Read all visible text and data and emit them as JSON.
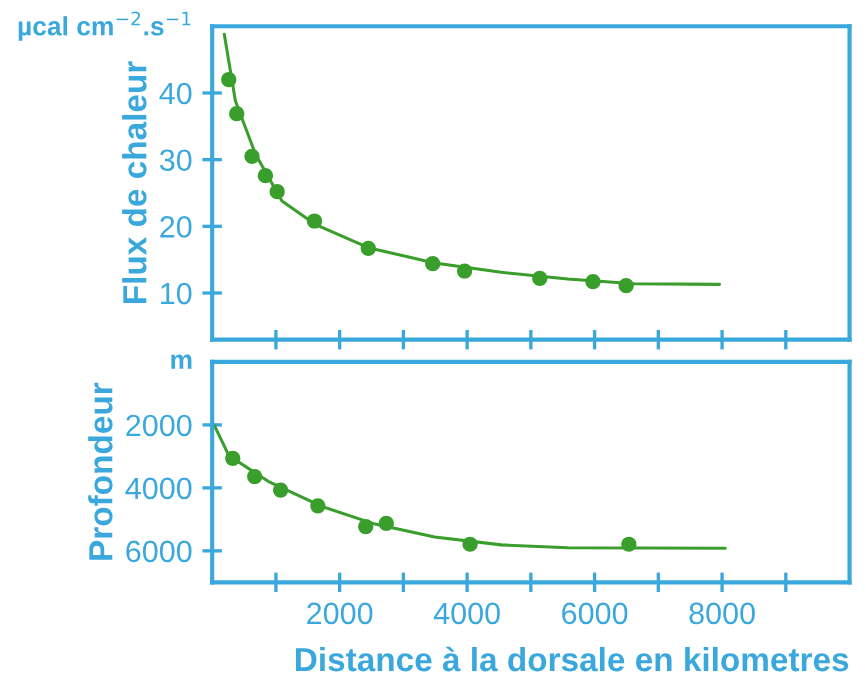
{
  "chart_data": [
    {
      "type": "scatter",
      "ylabel": "Flux de chaleur",
      "annotations": [
        "µcal cm$^{−2}$.s$^{−1}$"
      ],
      "xlim": [
        0,
        10000
      ],
      "ylim": [
        3,
        50
      ],
      "xticks": [
        {
          "value": 1000,
          "label": null
        },
        {
          "value": 2000,
          "label": null
        },
        {
          "value": 3000,
          "label": null
        },
        {
          "value": 4000,
          "label": null
        },
        {
          "value": 5000,
          "label": null
        },
        {
          "value": 6000,
          "label": null
        },
        {
          "value": 7000,
          "label": null
        },
        {
          "value": 8000,
          "label": null
        },
        {
          "value": 9000,
          "label": null
        }
      ],
      "yticks": [
        10,
        20,
        30,
        40
      ],
      "tick_labels": "y",
      "grid": false,
      "legend": false,
      "series": [
        {
          "marker": "circle",
          "color": "#3a9e2c",
          "x": [
            260,
            385,
            625,
            835,
            1020,
            1605,
            2450,
            3460,
            3960,
            5140,
            5975,
            6495
          ],
          "values": [
            42.0,
            36.9,
            30.5,
            27.6,
            25.2,
            20.8,
            16.7,
            14.4,
            13.3,
            12.2,
            11.7,
            11.1
          ]
        },
        {
          "type": "line",
          "color": "#3a9e2c",
          "x": [
            190,
            365,
            680,
            1095,
            1615,
            2450,
            3490,
            4535,
            5580,
            6620,
            7960
          ],
          "values": [
            48.8,
            38.8,
            30.8,
            23.8,
            20.3,
            16.8,
            14.5,
            13.1,
            12.1,
            11.4,
            11.3
          ]
        }
      ]
    },
    {
      "type": "scatter",
      "xlabel": "Distance à la dorsale en kilometres",
      "ylabel": "Profondeur",
      "annotations": [
        "m"
      ],
      "xlim": [
        0,
        10000
      ],
      "ylim": [
        7000,
        0
      ],
      "xticks": [
        {
          "value": 1000,
          "label": null
        },
        2000,
        {
          "value": 3000,
          "label": null
        },
        4000,
        {
          "value": 5000,
          "label": null
        },
        6000,
        {
          "value": 7000,
          "label": null
        },
        8000,
        {
          "value": 9000,
          "label": null
        }
      ],
      "yticks": [
        2000,
        4000,
        6000
      ],
      "grid": false,
      "legend": false,
      "series": [
        {
          "marker": "circle",
          "color": "#3a9e2c",
          "x": [
            323,
            667,
            1074,
            1658,
            2409,
            2732,
            4046,
            6538
          ],
          "values": [
            3060,
            3640,
            4070,
            4570,
            5230,
            5130,
            5790,
            5790
          ]
        },
        {
          "type": "line",
          "color": "#3a9e2c",
          "x": [
            30,
            260,
            886,
            1720,
            2555,
            3490,
            4535,
            5580,
            8050
          ],
          "values": [
            2000,
            2970,
            3800,
            4590,
            5150,
            5560,
            5810,
            5900,
            5920
          ]
        }
      ]
    }
  ]
}
